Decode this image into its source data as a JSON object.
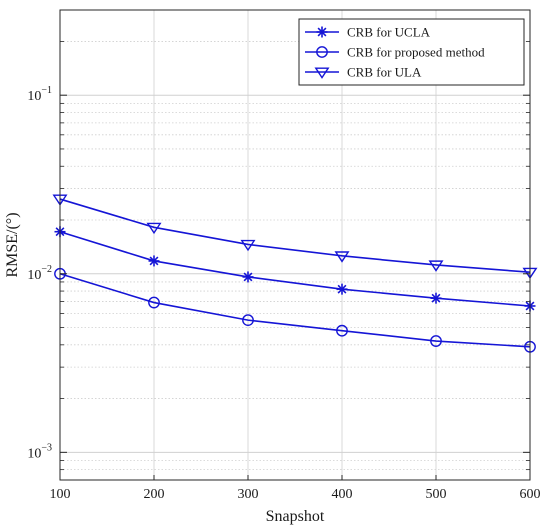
{
  "chart_data": {
    "type": "line",
    "title": "",
    "xlabel": "Snapshot",
    "ylabel": "RMSE/(°)",
    "x": [
      100,
      200,
      300,
      400,
      500,
      600
    ],
    "xlim": [
      100,
      600
    ],
    "ylim": [
      0.0007,
      0.3
    ],
    "yscale": "log",
    "grid": true,
    "legend_position": "top-right",
    "x_ticks": [
      100,
      200,
      300,
      400,
      500,
      600
    ],
    "y_ticks": [
      {
        "value": 0.001,
        "base": "10",
        "exp": "−3"
      },
      {
        "value": 0.01,
        "base": "10",
        "exp": "−2"
      },
      {
        "value": 0.1,
        "base": "10",
        "exp": "−1"
      }
    ],
    "series": [
      {
        "name": "CRB for UCLA",
        "marker": "star",
        "color": "#1515d6",
        "values": [
          0.0172,
          0.0118,
          0.0096,
          0.0082,
          0.0073,
          0.0066
        ]
      },
      {
        "name": "CRB for proposed method",
        "marker": "circle",
        "color": "#1515d6",
        "values": [
          0.01,
          0.0069,
          0.0055,
          0.0048,
          0.0042,
          0.0039
        ]
      },
      {
        "name": "CRB for ULA",
        "marker": "triangle-down",
        "color": "#1515d6",
        "values": [
          0.0262,
          0.0182,
          0.0146,
          0.0126,
          0.0112,
          0.0102
        ]
      }
    ]
  }
}
